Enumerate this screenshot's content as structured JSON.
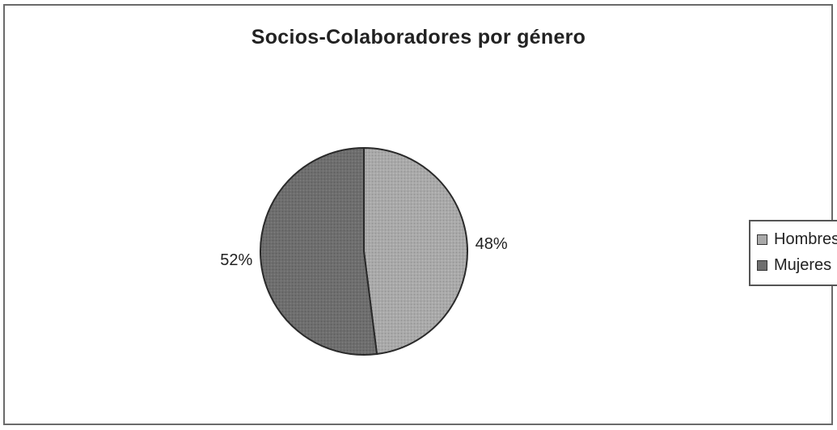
{
  "chart_data": {
    "type": "pie",
    "title": "Socios-Colaboradores por género",
    "categories": [
      "Hombres",
      "Mujeres"
    ],
    "values": [
      48,
      52
    ],
    "labels": [
      "48%",
      "52%"
    ],
    "legend_position": "right",
    "colors": [
      "#a9a9a9",
      "#6e6e6e"
    ]
  }
}
